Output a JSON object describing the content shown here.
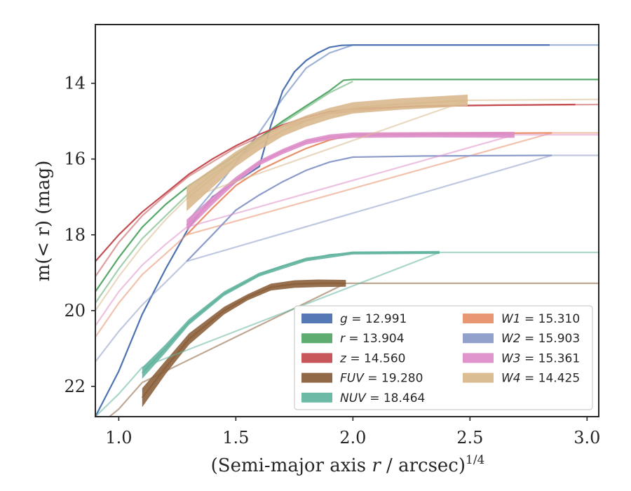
{
  "chart_data": {
    "type": "line",
    "title": "",
    "xlabel_main": "(Semi-major axis ",
    "xlabel_var": "r",
    "xlabel_tail": " / arcsec)",
    "xlabel_sup": "1/4",
    "ylabel_main": "m(< r) (mag)",
    "xlim": [
      0.9,
      3.05
    ],
    "ylim": [
      22.8,
      12.45
    ],
    "y_inverted": true,
    "xticks": [
      1.0,
      1.5,
      2.0,
      2.5,
      3.0
    ],
    "xtick_labels": [
      "1.0",
      "1.5",
      "2.0",
      "2.5",
      "3.0"
    ],
    "yticks": [
      14,
      16,
      18,
      20,
      22
    ],
    "ytick_labels": [
      "14",
      "16",
      "18",
      "20",
      "22"
    ],
    "grid": false,
    "legend_position": "lower right",
    "series": [
      {
        "name": "g",
        "label": "g = 12.991",
        "color": "#4c72b0",
        "x": [
          0.9,
          1.0,
          1.1,
          1.2,
          1.3,
          1.4,
          1.5,
          1.6,
          1.65,
          1.7,
          1.75,
          1.8,
          1.85,
          1.9,
          1.95,
          2.0,
          2.2,
          2.5,
          2.84
        ],
        "y": [
          22.8,
          21.6,
          20.1,
          18.9,
          17.8,
          17.0,
          16.6,
          16.2,
          15.1,
          14.2,
          13.7,
          13.4,
          13.2,
          13.05,
          13.0,
          12.99,
          12.99,
          12.99,
          12.99
        ],
        "ext_x": [
          1.3,
          1.45,
          1.6,
          1.7,
          1.8,
          1.9,
          2.0,
          2.4,
          2.84,
          3.05
        ],
        "ext_y": [
          17.6,
          16.5,
          15.3,
          14.4,
          13.6,
          13.2,
          12.99,
          12.99,
          12.99,
          12.99
        ],
        "band_x": [],
        "band_w": []
      },
      {
        "name": "r",
        "label": "r = 13.904",
        "color": "#55a868",
        "x": [
          0.9,
          1.0,
          1.1,
          1.2,
          1.3,
          1.4,
          1.5,
          1.6,
          1.7,
          1.8,
          1.9,
          1.96,
          2.0,
          2.5,
          3.05
        ],
        "y": [
          19.5,
          18.6,
          17.8,
          17.2,
          16.7,
          16.3,
          15.9,
          15.45,
          15.0,
          14.6,
          14.2,
          13.92,
          13.9,
          13.9,
          13.9
        ],
        "ext_x": [
          0.9,
          1.0,
          1.1,
          1.2,
          1.3,
          1.4,
          1.5,
          1.6,
          1.7,
          1.8,
          1.9,
          2.0
        ],
        "ext_y": [
          19.8,
          18.9,
          18.1,
          17.5,
          16.9,
          16.4,
          16.0,
          15.5,
          15.05,
          14.65,
          14.25,
          13.95
        ],
        "band_x": [],
        "band_w": []
      },
      {
        "name": "z",
        "label": "z = 14.560",
        "color": "#c44e52",
        "x": [
          0.9,
          1.0,
          1.1,
          1.2,
          1.3,
          1.4,
          1.5,
          1.6,
          1.7,
          1.8,
          1.9,
          2.0,
          2.3,
          2.6,
          2.95
        ],
        "y": [
          18.7,
          18.0,
          17.4,
          16.9,
          16.4,
          16.0,
          15.65,
          15.35,
          15.1,
          14.9,
          14.75,
          14.68,
          14.6,
          14.58,
          14.56
        ],
        "ext_x": [
          0.9,
          1.0,
          1.1,
          1.2,
          1.3,
          1.5,
          1.7,
          1.9,
          2.2,
          2.6,
          3.05
        ],
        "ext_y": [
          19.1,
          18.2,
          17.5,
          16.95,
          16.45,
          15.7,
          15.15,
          14.8,
          14.62,
          14.58,
          14.56
        ],
        "band_x": [],
        "band_w": []
      },
      {
        "name": "FUV",
        "label": "FUV = 19.280",
        "color": "#8c613c",
        "x": [
          1.1,
          1.2,
          1.3,
          1.45,
          1.55,
          1.65,
          1.75,
          1.85,
          1.97
        ],
        "y": [
          22.3,
          21.5,
          20.75,
          20.0,
          19.65,
          19.38,
          19.3,
          19.28,
          19.28
        ],
        "ext_x": [
          0.9,
          1.0,
          1.1,
          1.97,
          2.5,
          3.05
        ],
        "ext_y": [
          23.1,
          22.6,
          21.9,
          19.28,
          19.28,
          19.28
        ],
        "band_x": [
          1.1,
          1.2,
          1.3,
          1.45,
          1.55,
          1.65,
          1.75,
          1.85,
          1.97
        ],
        "band_w": [
          0.5,
          0.35,
          0.3,
          0.2,
          0.16,
          0.18,
          0.2,
          0.2,
          0.18
        ]
      },
      {
        "name": "NUV",
        "label": "NUV = 18.464",
        "color": "#64b5a0",
        "x": [
          1.1,
          1.2,
          1.3,
          1.45,
          1.6,
          1.7,
          1.8,
          1.9,
          2.0,
          2.2,
          2.37
        ],
        "y": [
          21.65,
          21.0,
          20.3,
          19.55,
          19.05,
          18.82,
          18.65,
          18.53,
          18.48,
          18.47,
          18.464
        ],
        "ext_x": [
          0.9,
          1.0,
          1.1,
          2.37,
          2.7,
          3.05
        ],
        "ext_y": [
          22.8,
          22.2,
          21.5,
          18.464,
          18.464,
          18.464
        ],
        "band_x": [
          1.1,
          1.2,
          1.3,
          1.45,
          1.6,
          1.8,
          2.0,
          2.37
        ],
        "band_w": [
          0.3,
          0.22,
          0.16,
          0.12,
          0.1,
          0.1,
          0.08,
          0.08
        ]
      },
      {
        "name": "W1",
        "label": "W1 = 15.310",
        "color": "#e8906b",
        "x": [
          1.29,
          1.4,
          1.5,
          1.6,
          1.7,
          1.8,
          1.9,
          2.0,
          2.3,
          2.6,
          2.85
        ],
        "y": [
          18.0,
          17.3,
          16.7,
          16.3,
          16.0,
          15.72,
          15.5,
          15.36,
          15.33,
          15.32,
          15.31
        ],
        "ext_x": [
          0.9,
          1.0,
          1.1,
          1.2,
          1.29,
          2.85,
          3.05
        ],
        "ext_y": [
          20.7,
          19.8,
          19.05,
          18.5,
          18.0,
          15.31,
          15.31
        ],
        "band_x": [],
        "band_w": []
      },
      {
        "name": "W2",
        "label": "W2 = 15.903",
        "color": "#8c9bc9",
        "x": [
          1.29,
          1.4,
          1.5,
          1.6,
          1.7,
          1.8,
          1.9,
          2.0,
          2.3,
          2.6,
          2.85
        ],
        "y": [
          18.7,
          18.0,
          17.35,
          16.95,
          16.6,
          16.3,
          16.08,
          15.95,
          15.92,
          15.91,
          15.903
        ],
        "ext_x": [
          0.9,
          1.0,
          1.1,
          1.2,
          1.29,
          2.85,
          3.05
        ],
        "ext_y": [
          21.35,
          20.55,
          19.85,
          19.25,
          18.7,
          15.903,
          15.903
        ],
        "band_x": [],
        "band_w": []
      },
      {
        "name": "W3",
        "label": "W3 = 15.361",
        "color": "#dd8ec8",
        "x": [
          1.29,
          1.4,
          1.5,
          1.6,
          1.7,
          1.8,
          1.9,
          2.0,
          2.3,
          2.69
        ],
        "y": [
          17.75,
          17.1,
          16.55,
          16.1,
          15.8,
          15.55,
          15.42,
          15.37,
          15.36,
          15.361
        ],
        "ext_x": [
          0.9,
          1.0,
          1.1,
          1.2,
          1.29,
          2.69,
          3.05
        ],
        "ext_y": [
          20.4,
          19.5,
          18.8,
          18.25,
          17.8,
          15.361,
          15.361
        ],
        "band_x": [
          1.29,
          1.4,
          1.5,
          1.6,
          1.7,
          1.8,
          1.9,
          2.0,
          2.3,
          2.69
        ],
        "band_w": [
          0.3,
          0.22,
          0.16,
          0.14,
          0.14,
          0.14,
          0.14,
          0.14,
          0.14,
          0.16
        ]
      },
      {
        "name": "W4",
        "label": "W4 = 14.425",
        "color": "#d9b98e",
        "x": [
          1.29,
          1.4,
          1.5,
          1.6,
          1.7,
          1.8,
          1.9,
          2.0,
          2.2,
          2.49
        ],
        "y": [
          17.05,
          16.5,
          16.0,
          15.6,
          15.25,
          15.0,
          14.8,
          14.65,
          14.55,
          14.45
        ],
        "ext_x": [
          0.9,
          1.0,
          1.1,
          1.2,
          1.29,
          2.49,
          3.05
        ],
        "ext_y": [
          20.0,
          19.1,
          18.3,
          17.6,
          17.05,
          14.45,
          14.425
        ],
        "band_x": [
          1.29,
          1.4,
          1.5,
          1.6,
          1.7,
          1.8,
          1.9,
          2.0,
          2.2,
          2.49
        ],
        "band_w": [
          0.65,
          0.5,
          0.4,
          0.34,
          0.3,
          0.3,
          0.3,
          0.3,
          0.3,
          0.3
        ]
      }
    ]
  }
}
